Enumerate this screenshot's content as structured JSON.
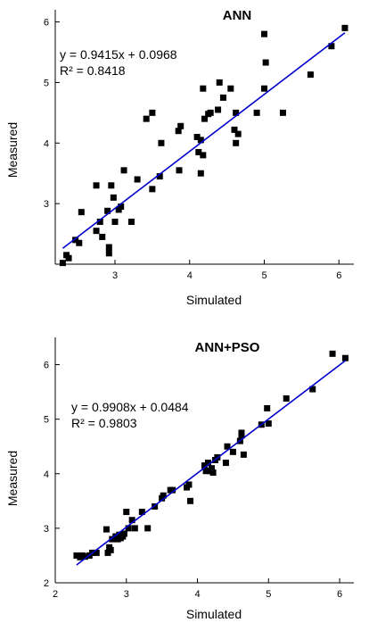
{
  "chart_data": [
    {
      "type": "scatter",
      "title": "ANN",
      "xlabel": "Simulated",
      "ylabel": "Measured",
      "xlim": [
        2.2,
        6.2
      ],
      "ylim": [
        2.0,
        6.2
      ],
      "xticks": [
        3,
        4,
        5,
        6
      ],
      "yticks": [
        3,
        4,
        5,
        6
      ],
      "grid": false,
      "equation": "y = 0.9415x + 0.0968",
      "r2": "R² = 0.8418",
      "fit": {
        "slope": 0.9415,
        "intercept": 0.0968,
        "x_range": [
          2.3,
          6.08
        ]
      },
      "marker_color": "#000000",
      "fit_color": "#0000cc",
      "points": [
        [
          2.3,
          2.02
        ],
        [
          2.35,
          2.15
        ],
        [
          2.38,
          2.1
        ],
        [
          2.47,
          2.4
        ],
        [
          2.52,
          2.35
        ],
        [
          2.55,
          2.86
        ],
        [
          2.75,
          3.3
        ],
        [
          2.75,
          2.55
        ],
        [
          2.8,
          2.7
        ],
        [
          2.83,
          2.45
        ],
        [
          2.9,
          2.88
        ],
        [
          2.92,
          2.28
        ],
        [
          2.92,
          2.18
        ],
        [
          2.95,
          3.3
        ],
        [
          2.98,
          3.1
        ],
        [
          3.0,
          2.7
        ],
        [
          3.05,
          2.9
        ],
        [
          3.08,
          2.95
        ],
        [
          3.12,
          3.55
        ],
        [
          3.22,
          2.7
        ],
        [
          3.3,
          3.4
        ],
        [
          3.42,
          4.4
        ],
        [
          3.5,
          4.5
        ],
        [
          3.5,
          3.24
        ],
        [
          3.6,
          3.45
        ],
        [
          3.62,
          4.0
        ],
        [
          3.85,
          4.2
        ],
        [
          3.88,
          4.28
        ],
        [
          3.86,
          3.55
        ],
        [
          4.1,
          4.1
        ],
        [
          4.12,
          3.85
        ],
        [
          4.15,
          4.05
        ],
        [
          4.15,
          3.5
        ],
        [
          4.18,
          3.8
        ],
        [
          4.18,
          4.9
        ],
        [
          4.2,
          4.4
        ],
        [
          4.25,
          4.48
        ],
        [
          4.28,
          4.5
        ],
        [
          4.38,
          4.55
        ],
        [
          4.4,
          5.0
        ],
        [
          4.45,
          4.75
        ],
        [
          4.55,
          4.9
        ],
        [
          4.6,
          4.22
        ],
        [
          4.62,
          4.0
        ],
        [
          4.62,
          4.5
        ],
        [
          4.65,
          4.15
        ],
        [
          4.9,
          4.5
        ],
        [
          5.0,
          4.9
        ],
        [
          5.0,
          5.8
        ],
        [
          5.02,
          5.33
        ],
        [
          5.25,
          4.5
        ],
        [
          5.62,
          5.13
        ],
        [
          5.9,
          5.6
        ],
        [
          6.08,
          5.9
        ]
      ]
    },
    {
      "type": "scatter",
      "title": "ANN+PSO",
      "xlabel": "Simulated",
      "ylabel": "Measured",
      "xlim": [
        2.0,
        6.2
      ],
      "ylim": [
        2.0,
        6.5
      ],
      "xticks": [
        2,
        3,
        4,
        5,
        6
      ],
      "yticks": [
        2,
        3,
        4,
        5,
        6
      ],
      "grid": false,
      "equation": "y = 0.9908x + 0.0484",
      "r2": "R² = 0.9803",
      "fit": {
        "slope": 0.9908,
        "intercept": 0.0484,
        "x_range": [
          2.3,
          6.08
        ]
      },
      "marker_color": "#000000",
      "fit_color": "#0000cc",
      "points": [
        [
          2.3,
          2.5
        ],
        [
          2.35,
          2.47
        ],
        [
          2.38,
          2.5
        ],
        [
          2.42,
          2.48
        ],
        [
          2.48,
          2.5
        ],
        [
          2.52,
          2.55
        ],
        [
          2.58,
          2.55
        ],
        [
          2.72,
          2.98
        ],
        [
          2.74,
          2.55
        ],
        [
          2.76,
          2.65
        ],
        [
          2.78,
          2.6
        ],
        [
          2.8,
          2.8
        ],
        [
          2.85,
          2.85
        ],
        [
          2.88,
          2.8
        ],
        [
          2.9,
          2.88
        ],
        [
          2.92,
          2.82
        ],
        [
          2.95,
          2.85
        ],
        [
          2.97,
          2.9
        ],
        [
          3.0,
          3.3
        ],
        [
          3.03,
          3.0
        ],
        [
          3.08,
          3.15
        ],
        [
          3.12,
          3.0
        ],
        [
          3.22,
          3.3
        ],
        [
          3.3,
          3.0
        ],
        [
          3.4,
          3.4
        ],
        [
          3.5,
          3.55
        ],
        [
          3.52,
          3.6
        ],
        [
          3.62,
          3.7
        ],
        [
          3.65,
          3.7
        ],
        [
          3.85,
          3.75
        ],
        [
          3.88,
          3.8
        ],
        [
          3.9,
          3.5
        ],
        [
          4.1,
          4.15
        ],
        [
          4.12,
          4.05
        ],
        [
          4.15,
          4.2
        ],
        [
          4.18,
          4.05
        ],
        [
          4.2,
          4.1
        ],
        [
          4.22,
          4.02
        ],
        [
          4.25,
          4.25
        ],
        [
          4.28,
          4.3
        ],
        [
          4.4,
          4.2
        ],
        [
          4.42,
          4.5
        ],
        [
          4.5,
          4.4
        ],
        [
          4.6,
          4.6
        ],
        [
          4.62,
          4.75
        ],
        [
          4.62,
          4.7
        ],
        [
          4.65,
          4.35
        ],
        [
          4.9,
          4.9
        ],
        [
          4.98,
          5.2
        ],
        [
          5.0,
          4.92
        ],
        [
          5.25,
          5.38
        ],
        [
          5.62,
          5.55
        ],
        [
          5.9,
          6.2
        ],
        [
          6.08,
          6.12
        ]
      ]
    }
  ]
}
